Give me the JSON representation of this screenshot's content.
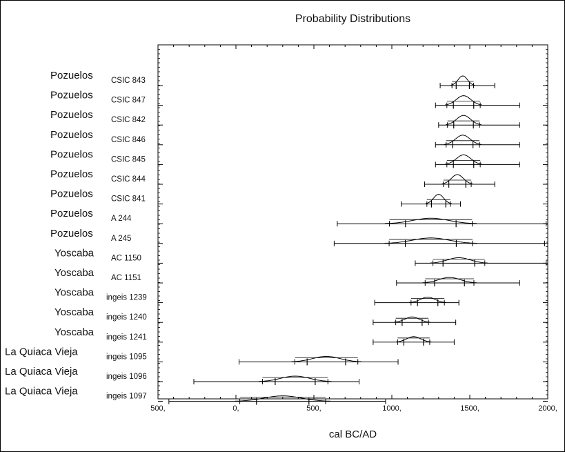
{
  "chart_data": {
    "type": "range",
    "title": "Probability Distributions",
    "xlabel": "cal BC/AD",
    "ylabel": "",
    "xlim": [
      -500,
      2000
    ],
    "x_ticks": [
      -500,
      0,
      500,
      1000,
      1500,
      2000
    ],
    "x_tick_labels": [
      "500,",
      "0,",
      "500,",
      "1000,",
      "1500,",
      "2000,"
    ],
    "rows": [
      {
        "site": "Pozuelos",
        "lab": "CSIC 843",
        "range": [
          1310,
          1660
        ],
        "peak": 1455
      },
      {
        "site": "Pozuelos",
        "lab": "CSIC 847",
        "range": [
          1280,
          1820
        ],
        "peak": 1460
      },
      {
        "site": "Pozuelos",
        "lab": "CSIC 842",
        "range": [
          1300,
          1820
        ],
        "peak": 1460
      },
      {
        "site": "Pozuelos",
        "lab": "CSIC 846",
        "range": [
          1280,
          1820
        ],
        "peak": 1455
      },
      {
        "site": "Pozuelos",
        "lab": "CSIC 845",
        "range": [
          1280,
          1820
        ],
        "peak": 1460
      },
      {
        "site": "Pozuelos",
        "lab": "CSIC 844",
        "range": [
          1210,
          1660
        ],
        "peak": 1420
      },
      {
        "site": "Pozuelos",
        "lab": "CSIC 841",
        "range": [
          1060,
          1440
        ],
        "peak": 1300
      },
      {
        "site": "Pozuelos",
        "lab": "A 244",
        "range": [
          650,
          1990
        ],
        "peak": 1250
      },
      {
        "site": "Pozuelos",
        "lab": "A 245",
        "range": [
          630,
          1980
        ],
        "peak": 1250
      },
      {
        "site": "Yoscaba",
        "lab": "AC 1150",
        "range": [
          1150,
          1990
        ],
        "peak": 1430
      },
      {
        "site": "Yoscaba",
        "lab": "AC 1151",
        "range": [
          1030,
          1820
        ],
        "peak": 1370
      },
      {
        "site": "Yoscaba",
        "lab": "ingeis 1239",
        "range": [
          890,
          1430
        ],
        "peak": 1230
      },
      {
        "site": "Yoscaba",
        "lab": "ingeis 1240",
        "range": [
          880,
          1410
        ],
        "peak": 1130
      },
      {
        "site": "Yoscaba",
        "lab": "ingeis 1241",
        "range": [
          880,
          1400
        ],
        "peak": 1140
      },
      {
        "site": "La Quiaca Vieja",
        "lab": "ingeis 1095",
        "range": [
          20,
          1040
        ],
        "peak": 580
      },
      {
        "site": "La Quiaca Vieja",
        "lab": "ingeis 1096",
        "range": [
          -270,
          790
        ],
        "peak": 380
      },
      {
        "site": "La Quiaca Vieja",
        "lab": "ingeis 1097",
        "range": [
          -430,
          960
        ],
        "peak": 300
      }
    ]
  }
}
